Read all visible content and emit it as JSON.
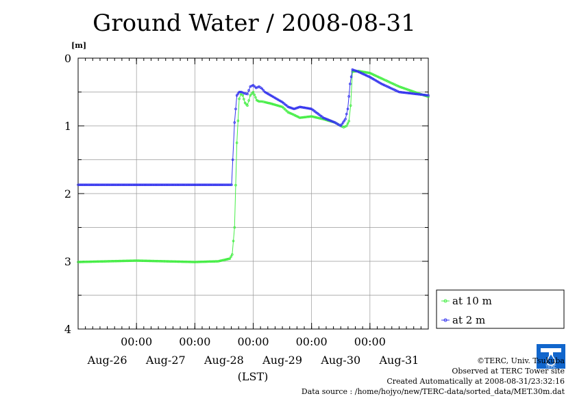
{
  "chart_data": {
    "type": "line",
    "title": "Ground Water / 2008-08-31",
    "ylabel": "[m]",
    "xlabel": "(LST)",
    "ylim": [
      0,
      4
    ],
    "y_inverted": true,
    "y_ticks": [
      "0",
      "1",
      "2",
      "3",
      "4"
    ],
    "x_tick_times": [
      "00:00",
      "00:00",
      "00:00",
      "00:00",
      "00:00"
    ],
    "x_tick_positions": [
      0.5,
      1.5,
      2.5,
      3.5,
      4.5
    ],
    "x_day_labels": [
      "Aug-26",
      "Aug-27",
      "Aug-28",
      "Aug-29",
      "Aug-30",
      "Aug-31"
    ],
    "x_day_positions": [
      0,
      1,
      2,
      3,
      4,
      5
    ],
    "xlim": [
      -0.5,
      5.5
    ],
    "grid": true,
    "legend_position": "bottom-right outside",
    "series": [
      {
        "name": "at 10 m",
        "color": "#44ee44",
        "x": [
          -0.5,
          0.5,
          1.5,
          1.9,
          2.1,
          2.14,
          2.18,
          2.22,
          2.26,
          2.29,
          2.32,
          2.36,
          2.4,
          2.45,
          2.5,
          2.56,
          2.6,
          2.65,
          2.7,
          2.8,
          3.0,
          3.1,
          3.18,
          3.3,
          3.5,
          3.7,
          3.9,
          4.0,
          4.05,
          4.1,
          4.14,
          4.17,
          4.2,
          4.3,
          4.5,
          4.7,
          5.0,
          5.5
        ],
        "values": [
          3.01,
          2.99,
          3.01,
          3.0,
          2.96,
          2.9,
          2.5,
          1.25,
          0.6,
          0.53,
          0.55,
          0.66,
          0.7,
          0.55,
          0.5,
          0.62,
          0.64,
          0.64,
          0.65,
          0.67,
          0.72,
          0.8,
          0.83,
          0.88,
          0.86,
          0.9,
          0.95,
          1.0,
          1.02,
          1.0,
          0.93,
          0.7,
          0.2,
          0.19,
          0.22,
          0.3,
          0.42,
          0.57
        ]
      },
      {
        "name": "at 2 m",
        "color": "#3333ee",
        "x": [
          -0.5,
          0.5,
          1.5,
          2.0,
          2.13,
          2.15,
          2.18,
          2.22,
          2.26,
          2.3,
          2.35,
          2.4,
          2.45,
          2.5,
          2.55,
          2.6,
          2.65,
          2.7,
          2.8,
          3.0,
          3.1,
          3.2,
          3.3,
          3.5,
          3.7,
          3.9,
          4.0,
          4.08,
          4.12,
          4.16,
          4.2,
          4.3,
          4.5,
          4.7,
          5.0,
          5.5
        ],
        "values": [
          1.87,
          1.87,
          1.87,
          1.87,
          1.87,
          1.5,
          0.95,
          0.55,
          0.5,
          0.5,
          0.52,
          0.53,
          0.42,
          0.4,
          0.44,
          0.42,
          0.45,
          0.5,
          0.55,
          0.65,
          0.72,
          0.75,
          0.72,
          0.75,
          0.88,
          0.95,
          1.0,
          0.9,
          0.75,
          0.38,
          0.17,
          0.2,
          0.28,
          0.38,
          0.5,
          0.55
        ]
      }
    ]
  },
  "credits": {
    "copyright": "©TERC, Univ. Tsukuba",
    "observed": "Observed at TERC Tower site",
    "created": "Created Automatically at 2008-08-31/23:32:16",
    "source": "Data source : /home/hojyo/new/TERC-data/sorted_data/MET.30m.dat"
  },
  "logo": {
    "text": "TERC",
    "color": "#1166cc"
  }
}
